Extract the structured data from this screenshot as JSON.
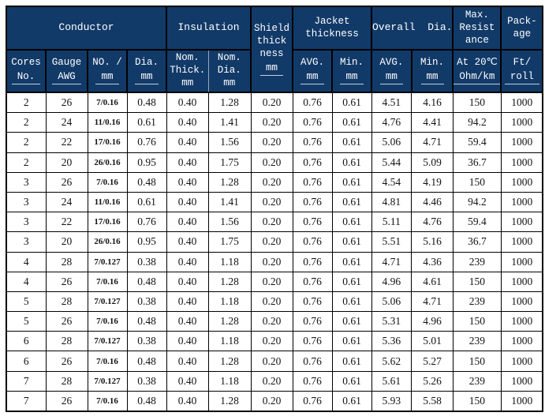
{
  "colors": {
    "header_bg": "#123a68",
    "header_text": "#ffffff",
    "grid": "#000000",
    "header_underline": "#c6cfde",
    "insulation_inner_divider": "#93a4c0",
    "data_text": "#131313",
    "page_bg": "#ffffff"
  },
  "table": {
    "column_ids": [
      "cores_no",
      "gauge_awg",
      "no_mm",
      "dia_mm",
      "ins_nom_thick",
      "ins_nom_dia",
      "shield",
      "jacket_avg",
      "jacket_min",
      "overall_avg",
      "overall_min",
      "resistance",
      "package"
    ],
    "header": {
      "conductor": {
        "label": "Conductor"
      },
      "insulation": {
        "label": "Insulation"
      },
      "shield": {
        "lines": [
          "Shield",
          "thick",
          "ness"
        ],
        "underlined": "mm"
      },
      "jacket": {
        "lines": [
          "Jacket",
          "thickness"
        ]
      },
      "overall": {
        "label": "Overall  Dia."
      },
      "resistance": {
        "lines": [
          "Max.",
          "Resist",
          "ance"
        ]
      },
      "package": {
        "lines": [
          "Pack-",
          "age"
        ]
      },
      "sub": {
        "cores": {
          "lines": [
            "Cores"
          ],
          "underlined": "No."
        },
        "gauge": {
          "lines": [
            "Gauge"
          ],
          "underlined": "AWG"
        },
        "no_mm": {
          "lines": [
            "NO. /"
          ],
          "underlined": "mm"
        },
        "dia_mm": {
          "lines": [
            "Dia."
          ],
          "underlined": "mm"
        },
        "nom_thick": {
          "lines": [
            "Nom.",
            "Thick.",
            "mm"
          ],
          "underlined": ""
        },
        "nom_dia": {
          "lines": [
            "Nom.",
            "Dia.",
            "mm"
          ],
          "underlined": ""
        },
        "jacket_avg": {
          "lines": [
            "AVG."
          ],
          "underlined": "mm"
        },
        "jacket_min": {
          "lines": [
            "Min."
          ],
          "underlined": "mm"
        },
        "overall_avg": {
          "lines": [
            "AVG."
          ],
          "underlined": "mm"
        },
        "overall_min": {
          "lines": [
            "Min."
          ],
          "underlined": "mm"
        },
        "resistance": {
          "lines": [
            "At 20℃"
          ],
          "underlined": "Ohm/km"
        },
        "package": {
          "lines": [
            "Ft/"
          ],
          "underlined": "roll"
        }
      }
    },
    "rows": [
      [
        "2",
        "26",
        "7/0.16",
        "0.48",
        "0.40",
        "1.28",
        "0.20",
        "0.76",
        "0.61",
        "4.51",
        "4.16",
        "150",
        "1000"
      ],
      [
        "2",
        "24",
        "11/0.16",
        "0.61",
        "0.40",
        "1.41",
        "0.20",
        "0.76",
        "0.61",
        "4.76",
        "4.41",
        "94.2",
        "1000"
      ],
      [
        "2",
        "22",
        "17/0.16",
        "0.76",
        "0.40",
        "1.56",
        "0.20",
        "0.76",
        "0.61",
        "5.06",
        "4.71",
        "59.4",
        "1000"
      ],
      [
        "2",
        "20",
        "26/0.16",
        "0.95",
        "0.40",
        "1.75",
        "0.20",
        "0.76",
        "0.61",
        "5.44",
        "5.09",
        "36.7",
        "1000"
      ],
      [
        "3",
        "26",
        "7/0.16",
        "0.48",
        "0.40",
        "1.28",
        "0.20",
        "0.76",
        "0.61",
        "4.54",
        "4.19",
        "150",
        "1000"
      ],
      [
        "3",
        "24",
        "11/0.16",
        "0.61",
        "0.40",
        "1.41",
        "0.20",
        "0.76",
        "0.61",
        "4.81",
        "4.46",
        "94.2",
        "1000"
      ],
      [
        "3",
        "22",
        "17/0.16",
        "0.76",
        "0.40",
        "1.56",
        "0.20",
        "0.76",
        "0.61",
        "5.11",
        "4.76",
        "59.4",
        "1000"
      ],
      [
        "3",
        "20",
        "26/0.16",
        "0.95",
        "0.40",
        "1.75",
        "0.20",
        "0.76",
        "0.61",
        "5.51",
        "5.16",
        "36.7",
        "1000"
      ],
      [
        "4",
        "28",
        "7/0.127",
        "0.38",
        "0.40",
        "1.18",
        "0.20",
        "0.76",
        "0.61",
        "4.71",
        "4.36",
        "239",
        "1000"
      ],
      [
        "4",
        "26",
        "7/0.16",
        "0.48",
        "0.40",
        "1.28",
        "0.20",
        "0.76",
        "0.61",
        "4.96",
        "4.61",
        "150",
        "1000"
      ],
      [
        "5",
        "28",
        "7/0.127",
        "0.38",
        "0.40",
        "1.18",
        "0.20",
        "0.76",
        "0.61",
        "5.06",
        "4.71",
        "239",
        "1000"
      ],
      [
        "5",
        "26",
        "7/0.16",
        "0.48",
        "0.40",
        "1.28",
        "0.20",
        "0.76",
        "0.61",
        "5.31",
        "4.96",
        "150",
        "1000"
      ],
      [
        "6",
        "28",
        "7/0.127",
        "0.38",
        "0.40",
        "1.18",
        "0.20",
        "0.76",
        "0.61",
        "5.36",
        "5.01",
        "239",
        "1000"
      ],
      [
        "6",
        "26",
        "7/0.16",
        "0.48",
        "0.40",
        "1.28",
        "0.20",
        "0.76",
        "0.61",
        "5.62",
        "5.27",
        "150",
        "1000"
      ],
      [
        "7",
        "28",
        "7/0.127",
        "0.38",
        "0.40",
        "1.18",
        "0.20",
        "0.76",
        "0.61",
        "5.61",
        "5.26",
        "239",
        "1000"
      ],
      [
        "7",
        "26",
        "7/0.16",
        "0.48",
        "0.40",
        "1.28",
        "0.20",
        "0.76",
        "0.61",
        "5.93",
        "5.58",
        "150",
        "1000"
      ]
    ]
  }
}
